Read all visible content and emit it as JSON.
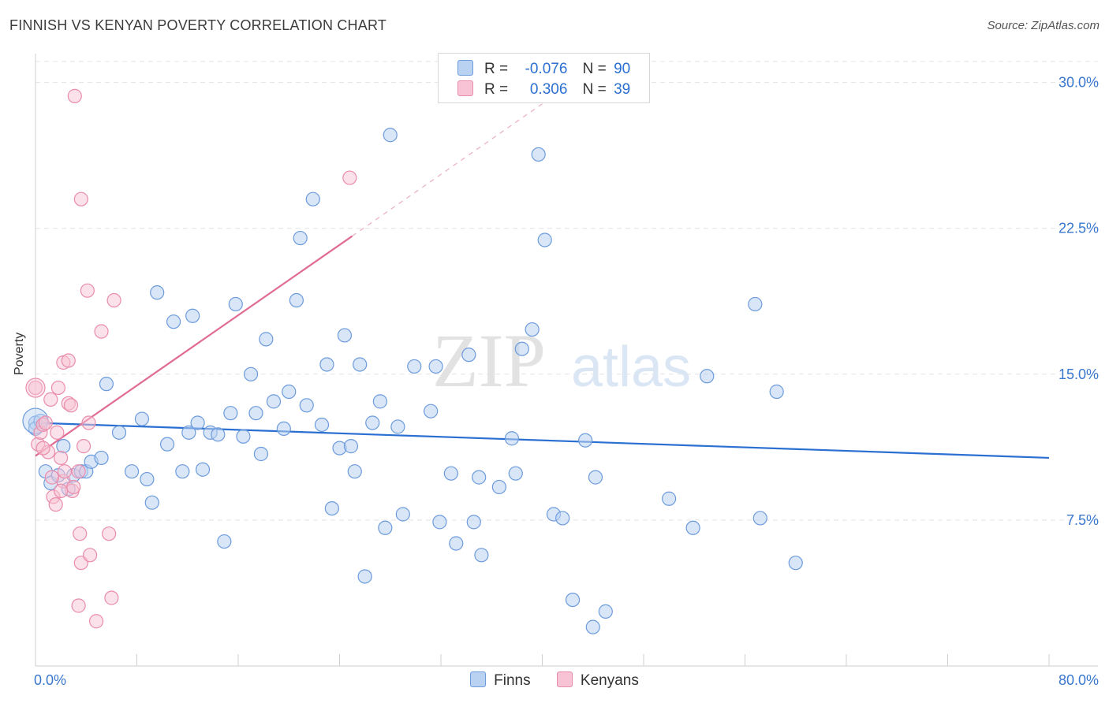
{
  "header": {
    "title": "FINNISH VS KENYAN POVERTY CORRELATION CHART",
    "source": "Source: ZipAtlas.com"
  },
  "watermark": {
    "zip": "ZIP",
    "atlas": "atlas"
  },
  "legend": {
    "finns": {
      "r_label": "R =",
      "r_value": "-0.076",
      "n_label": "N =",
      "n_value": "90"
    },
    "kenyans": {
      "r_label": "R =",
      "r_value": "0.306",
      "n_label": "N =",
      "n_value": "39"
    }
  },
  "colors": {
    "finns_fill": "#b9d2f2",
    "finns_stroke": "#6c9bdc",
    "finns_line": "#2a6fd1",
    "kenyans_fill": "#f8c3d4",
    "kenyans_stroke": "#ea8cab",
    "kenyans_line": "#e06b93",
    "grid": "#e3e3e3",
    "tick_label": "#3a78cf"
  },
  "chart_data": {
    "type": "scatter",
    "title": "FINNISH VS KENYAN POVERTY CORRELATION CHART",
    "xlabel": "",
    "ylabel": "Poverty",
    "xlim": [
      0,
      80
    ],
    "ylim": [
      0,
      31.2
    ],
    "x_tick_labels": [
      "0.0%",
      "80.0%"
    ],
    "y_ticks": [
      7.5,
      15.0,
      22.5,
      30.0
    ],
    "y_tick_labels": [
      "7.5%",
      "15.0%",
      "22.5%",
      "30.0%"
    ],
    "legend_entries": [
      "Finns",
      "Kenyans"
    ],
    "series": [
      {
        "name": "Finns",
        "r": -0.076,
        "n": 90,
        "trend": {
          "x": [
            0,
            80
          ],
          "y": [
            12.5,
            10.7
          ]
        },
        "points": [
          [
            0.0,
            12.5
          ],
          [
            0.0,
            12.2
          ],
          [
            0.8,
            10.0
          ],
          [
            1.2,
            9.4
          ],
          [
            1.8,
            9.8
          ],
          [
            2.2,
            11.3
          ],
          [
            2.6,
            9.1
          ],
          [
            3.0,
            9.8
          ],
          [
            3.6,
            10.0
          ],
          [
            4.0,
            10.0
          ],
          [
            4.4,
            10.5
          ],
          [
            5.2,
            10.7
          ],
          [
            5.6,
            14.5
          ],
          [
            6.6,
            12.0
          ],
          [
            7.6,
            10.0
          ],
          [
            8.4,
            12.7
          ],
          [
            8.8,
            9.6
          ],
          [
            9.2,
            8.4
          ],
          [
            9.6,
            19.2
          ],
          [
            10.4,
            11.4
          ],
          [
            10.9,
            17.7
          ],
          [
            11.6,
            10.0
          ],
          [
            12.1,
            12.0
          ],
          [
            12.4,
            18.0
          ],
          [
            12.8,
            12.5
          ],
          [
            13.2,
            10.1
          ],
          [
            13.8,
            12.0
          ],
          [
            14.4,
            11.9
          ],
          [
            14.9,
            6.4
          ],
          [
            15.4,
            13.0
          ],
          [
            15.8,
            18.6
          ],
          [
            16.4,
            11.8
          ],
          [
            17.0,
            15.0
          ],
          [
            17.4,
            13.0
          ],
          [
            17.8,
            10.9
          ],
          [
            18.2,
            16.8
          ],
          [
            18.8,
            13.6
          ],
          [
            19.6,
            12.2
          ],
          [
            20.0,
            14.1
          ],
          [
            20.6,
            18.8
          ],
          [
            20.9,
            22.0
          ],
          [
            21.4,
            13.4
          ],
          [
            21.9,
            24.0
          ],
          [
            22.6,
            12.4
          ],
          [
            23.0,
            15.5
          ],
          [
            23.4,
            8.1
          ],
          [
            24.0,
            11.2
          ],
          [
            24.4,
            17.0
          ],
          [
            24.9,
            11.3
          ],
          [
            25.2,
            10.0
          ],
          [
            25.6,
            15.5
          ],
          [
            26.0,
            4.6
          ],
          [
            26.6,
            12.5
          ],
          [
            27.2,
            13.6
          ],
          [
            27.6,
            7.1
          ],
          [
            28.0,
            27.3
          ],
          [
            28.6,
            12.3
          ],
          [
            29.0,
            7.8
          ],
          [
            29.9,
            15.4
          ],
          [
            31.2,
            13.1
          ],
          [
            31.6,
            15.4
          ],
          [
            31.9,
            7.4
          ],
          [
            32.8,
            9.9
          ],
          [
            33.2,
            6.3
          ],
          [
            34.2,
            16.0
          ],
          [
            34.6,
            7.4
          ],
          [
            35.0,
            9.7
          ],
          [
            35.2,
            5.7
          ],
          [
            36.6,
            9.2
          ],
          [
            37.6,
            11.7
          ],
          [
            37.9,
            9.9
          ],
          [
            38.4,
            16.3
          ],
          [
            39.2,
            17.3
          ],
          [
            39.7,
            26.3
          ],
          [
            40.2,
            21.9
          ],
          [
            40.9,
            7.8
          ],
          [
            41.6,
            7.6
          ],
          [
            42.4,
            3.4
          ],
          [
            43.4,
            11.6
          ],
          [
            44.0,
            2.0
          ],
          [
            44.2,
            9.7
          ],
          [
            45.0,
            2.8
          ],
          [
            50.0,
            8.6
          ],
          [
            51.9,
            7.1
          ],
          [
            53.0,
            14.9
          ],
          [
            56.8,
            18.6
          ],
          [
            57.2,
            7.6
          ],
          [
            58.5,
            14.1
          ],
          [
            60.0,
            5.3
          ],
          [
            0.4,
            12.6
          ]
        ]
      },
      {
        "name": "Kenyans",
        "r": 0.306,
        "n": 39,
        "trend": {
          "x": [
            0,
            25
          ],
          "y": [
            10.8,
            22.1
          ],
          "dashed_to": [
            40,
            28.9
          ]
        },
        "points": [
          [
            0.0,
            14.3
          ],
          [
            0.2,
            11.4
          ],
          [
            0.4,
            12.0
          ],
          [
            0.6,
            12.4
          ],
          [
            0.8,
            12.5
          ],
          [
            1.0,
            11.0
          ],
          [
            1.2,
            13.7
          ],
          [
            1.4,
            8.7
          ],
          [
            1.6,
            8.3
          ],
          [
            1.7,
            12.0
          ],
          [
            1.8,
            14.3
          ],
          [
            2.0,
            10.7
          ],
          [
            2.2,
            9.5
          ],
          [
            2.2,
            15.6
          ],
          [
            2.3,
            10.0
          ],
          [
            2.6,
            15.7
          ],
          [
            2.6,
            13.5
          ],
          [
            2.8,
            13.4
          ],
          [
            2.9,
            9.0
          ],
          [
            3.0,
            9.2
          ],
          [
            3.4,
            10.0
          ],
          [
            3.1,
            29.3
          ],
          [
            3.4,
            3.1
          ],
          [
            3.5,
            6.8
          ],
          [
            3.6,
            24.0
          ],
          [
            3.6,
            5.3
          ],
          [
            3.8,
            11.3
          ],
          [
            4.1,
            19.3
          ],
          [
            4.2,
            12.5
          ],
          [
            4.3,
            5.7
          ],
          [
            4.8,
            2.3
          ],
          [
            5.2,
            17.2
          ],
          [
            5.8,
            6.8
          ],
          [
            6.0,
            3.5
          ],
          [
            6.2,
            18.8
          ],
          [
            24.8,
            25.1
          ],
          [
            1.3,
            9.7
          ],
          [
            2.0,
            9.0
          ],
          [
            0.6,
            11.2
          ]
        ]
      }
    ]
  }
}
